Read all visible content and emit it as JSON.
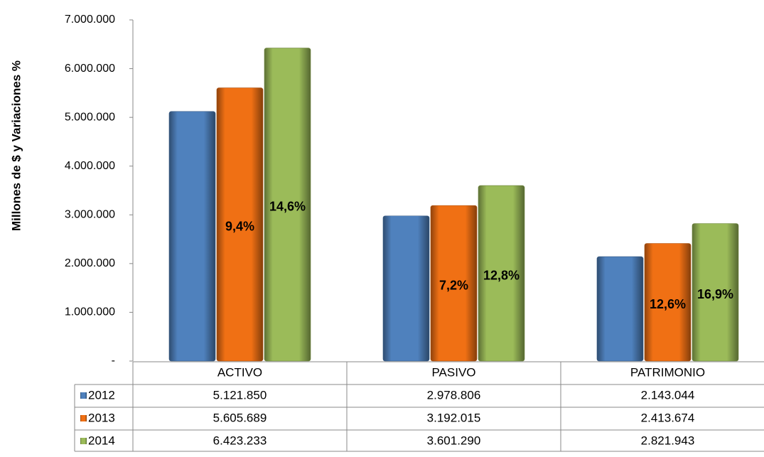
{
  "chart_data": {
    "type": "bar",
    "y_axis_label": "Millones de $ y Variaciones %",
    "categories": [
      "ACTIVO",
      "PASIVO",
      "PATRIMONIO"
    ],
    "series": [
      {
        "name": "2012",
        "color": "#4f81bd",
        "values": [
          5121850,
          2978806,
          2143044
        ],
        "value_labels": [
          "5.121.850",
          "2.978.806",
          "2.143.044"
        ]
      },
      {
        "name": "2013",
        "color": "#f07014",
        "values": [
          5605689,
          3192015,
          2413674
        ],
        "value_labels": [
          "5.605.689",
          "3.192.015",
          "2.413.674"
        ],
        "variation_labels": [
          "9,4%",
          "7,2%",
          "12,6%"
        ]
      },
      {
        "name": "2014",
        "color": "#9bbb59",
        "values": [
          6423233,
          3601290,
          2821943
        ],
        "value_labels": [
          "6.423.233",
          "3.601.290",
          "2.821.943"
        ],
        "variation_labels": [
          "14,6%",
          "12,8%",
          "16,9%"
        ]
      }
    ],
    "ylim": [
      0,
      7000000
    ],
    "yticks": [
      {
        "value": 0,
        "label": "-"
      },
      {
        "value": 1000000,
        "label": "1.000.000"
      },
      {
        "value": 2000000,
        "label": "2.000.000"
      },
      {
        "value": 3000000,
        "label": "3.000.000"
      },
      {
        "value": 4000000,
        "label": "4.000.000"
      },
      {
        "value": 5000000,
        "label": "5.000.000"
      },
      {
        "value": 6000000,
        "label": "6.000.000"
      },
      {
        "value": 7000000,
        "label": "7.000.000"
      }
    ],
    "data_table": true
  }
}
